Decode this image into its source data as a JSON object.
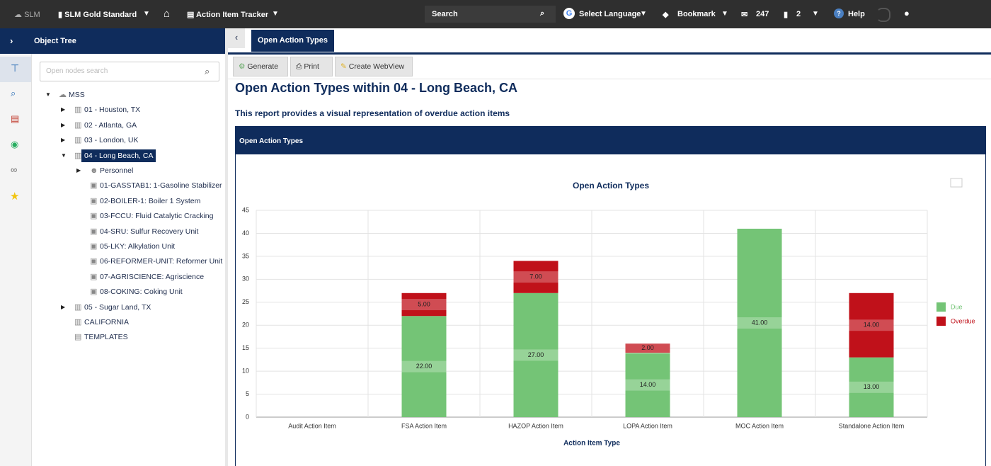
{
  "topbar": {
    "app": "SLM",
    "database": "SLM Gold Standard",
    "module": "Action Item Tracker",
    "search": "Search",
    "language": "Select Language",
    "bookmark": "Bookmark",
    "inbox": "247",
    "tasks": "2",
    "help": "Help"
  },
  "sidebar": {
    "title": "Object Tree",
    "search_placeholder": "Open nodes search",
    "tree": [
      "MSS",
      "01 - Houston, TX",
      "02 - Atlanta, GA",
      "03 - London, UK",
      "04 - Long Beach, CA",
      "Personnel",
      "01-GASSTAB1: 1-Gasoline Stabilizer",
      "02-BOILER-1: Boiler 1 System",
      "03-FCCU: Fluid Catalytic Cracking",
      "04-SRU: Sulfur Recovery Unit",
      "05-LKY: Alkylation Unit",
      "06-REFORMER-UNIT: Reformer Unit",
      "07-AGRISCIENCE: Agriscience",
      "08-COKING: Coking Unit",
      "05 - Sugar Land, TX",
      "CALIFORNIA",
      "TEMPLATES"
    ]
  },
  "tab": "Open Action Types",
  "toolbar": [
    "Generate",
    "Print",
    "Create WebView"
  ],
  "report": {
    "title": "Open Action Types within 04 - Long Beach, CA",
    "description": "This report provides a visual representation of overdue action items",
    "panel_title": "Open Action Types"
  },
  "chart_data": {
    "type": "bar",
    "stacked": true,
    "title": "Open Action Types",
    "x_label": "Action Item Type",
    "categories": [
      "Audit Action Item",
      "FSA Action Item",
      "HAZOP Action Item",
      "LOPA Action Item",
      "MOC Action Item",
      "Standalone Action Item"
    ],
    "series": [
      {
        "name": "Due",
        "color": "#74c476",
        "values": [
          0,
          22,
          27,
          14,
          41,
          13
        ],
        "value_labels": [
          null,
          "22.00",
          "27.00",
          "14.00",
          "41.00",
          "13.00"
        ]
      },
      {
        "name": "Overdue",
        "color": "#c0111a",
        "values": [
          0,
          5,
          7,
          2,
          0,
          14
        ],
        "value_labels": [
          null,
          "5.00",
          "7.00",
          "2.00",
          null,
          "14.00"
        ]
      }
    ],
    "ylim": [
      0,
      45
    ],
    "yticks": [
      0,
      5,
      10,
      15,
      20,
      25,
      30,
      35,
      40,
      45
    ],
    "grid": true,
    "legend": "right"
  }
}
